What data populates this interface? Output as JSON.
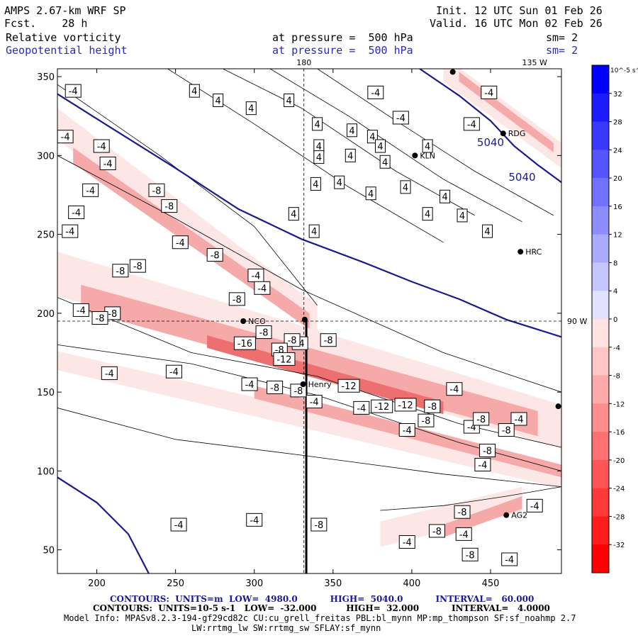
{
  "header": {
    "model": "AMPS 2.67-km WRF SP",
    "fcst": "Fcst.    28 h",
    "init": "Init. 12 UTC Sun 01 Feb 26",
    "valid": "Valid. 16 UTC Mon 02 Feb 26",
    "field1": {
      "name": "Relative vorticity",
      "pressure": "at pressure =  500 hPa",
      "sm": "sm= 2"
    },
    "field2": {
      "name": "Geopotential height",
      "pressure": "at pressure =  500 hPa",
      "sm": "sm= 2"
    }
  },
  "colors": {
    "axis": "#000000",
    "height_contour": "#1a1a8c",
    "vort_contour": "#000000",
    "neg_fill_light": "#fde6e6",
    "neg_fill_mid": "#f6a9a9",
    "neg_fill_strong": "#ee6f6f",
    "pos_label_blue": "#2a2ab8"
  },
  "chart_data": {
    "type": "heatmap",
    "x_range": [
      175,
      495
    ],
    "y_range": [
      35,
      355
    ],
    "x_ticks": [
      200,
      250,
      300,
      350,
      400,
      450
    ],
    "y_ticks": [
      50,
      100,
      150,
      200,
      250,
      300,
      350
    ],
    "meridian_labels": [
      {
        "text": "180",
        "x": 331.5,
        "y": 355,
        "edge": "top"
      },
      {
        "text": "135 W",
        "x": 478,
        "y": 355,
        "edge": "top"
      },
      {
        "text": "90 W",
        "x": 495,
        "y": 195,
        "edge": "right"
      }
    ],
    "grid_lines": {
      "x": 331.5,
      "y": 195
    },
    "cross_section_line": {
      "x": 333,
      "y_from": 35,
      "y_to": 195
    },
    "colorbar": {
      "unit_label": "10^-5 s^-1",
      "ticks": [
        32,
        28,
        24,
        20,
        16,
        12,
        8,
        4,
        0,
        -4,
        -8,
        -12,
        -16,
        -20,
        -24,
        -28,
        -32
      ],
      "colors": [
        "#0000ff",
        "#1c1cff",
        "#3838ff",
        "#5555ff",
        "#7171ff",
        "#8d8dff",
        "#aaaaff",
        "#c6c6ff",
        "#e2e2ff",
        "#ffe2e2",
        "#ffc6c6",
        "#ffaaaa",
        "#ff8d8d",
        "#ff7171",
        "#ff5555",
        "#ff3838",
        "#ff1c1c",
        "#ff0000"
      ]
    },
    "height_contours": [
      {
        "value": 5040,
        "label": "5040",
        "points": [
          [
            175,
            339
          ],
          [
            210,
            317
          ],
          [
            250,
            292
          ],
          [
            290,
            266
          ],
          [
            330,
            247
          ],
          [
            370,
            232
          ],
          [
            400,
            220
          ],
          [
            430,
            209
          ],
          [
            460,
            196
          ],
          [
            495,
            185
          ]
        ]
      },
      {
        "value": 5040,
        "label": "5040",
        "points": [
          [
            405,
            355
          ],
          [
            430,
            338
          ],
          [
            450,
            322
          ],
          [
            465,
            306
          ],
          [
            480,
            294
          ],
          [
            495,
            283
          ]
        ]
      },
      {
        "value": 5040,
        "label": "",
        "points": [
          [
            175,
            96
          ],
          [
            200,
            80
          ],
          [
            220,
            60
          ],
          [
            233,
            35
          ]
        ]
      }
    ],
    "stations": [
      {
        "name": "NCO",
        "x": 293,
        "y": 195
      },
      {
        "name": "Henry",
        "x": 331,
        "y": 155
      },
      {
        "name": "KLN",
        "x": 402,
        "y": 300
      },
      {
        "name": "RDG",
        "x": 458,
        "y": 314
      },
      {
        "name": "HRC",
        "x": 469,
        "y": 239
      },
      {
        "name": "AG2",
        "x": 460,
        "y": 72
      }
    ],
    "extra_markers": [
      {
        "x": 332,
        "y": 196
      },
      {
        "x": 426,
        "y": 353
      },
      {
        "x": 493,
        "y": 141
      }
    ],
    "contour_labels": [
      {
        "text": "-4",
        "x": 185,
        "y": 341
      },
      {
        "text": "-4",
        "x": 203,
        "y": 306
      },
      {
        "text": "-4",
        "x": 180,
        "y": 312
      },
      {
        "text": "-4",
        "x": 207,
        "y": 295
      },
      {
        "text": "-4",
        "x": 196,
        "y": 278
      },
      {
        "text": "-4",
        "x": 187,
        "y": 264
      },
      {
        "text": "-4",
        "x": 183,
        "y": 252
      },
      {
        "text": "-4",
        "x": 190,
        "y": 202
      },
      {
        "text": "-4",
        "x": 253,
        "y": 245
      },
      {
        "text": "-4",
        "x": 301,
        "y": 224
      },
      {
        "text": "-4",
        "x": 305,
        "y": 216
      },
      {
        "text": "-4",
        "x": 329,
        "y": 181
      },
      {
        "text": "-4",
        "x": 208,
        "y": 162
      },
      {
        "text": "-4",
        "x": 249,
        "y": 163
      },
      {
        "text": "-4",
        "x": 297,
        "y": 155
      },
      {
        "text": "-4",
        "x": 338,
        "y": 144
      },
      {
        "text": "-4",
        "x": 368,
        "y": 140
      },
      {
        "text": "-4",
        "x": 397,
        "y": 126
      },
      {
        "text": "-4",
        "x": 427,
        "y": 152
      },
      {
        "text": "-4",
        "x": 445,
        "y": 104
      },
      {
        "text": "-4",
        "x": 438,
        "y": 128
      },
      {
        "text": "-4",
        "x": 468,
        "y": 133
      },
      {
        "text": "-4",
        "x": 478,
        "y": 78
      },
      {
        "text": "-4",
        "x": 462,
        "y": 44
      },
      {
        "text": "-4",
        "x": 397,
        "y": 55
      },
      {
        "text": "-4",
        "x": 300,
        "y": 69
      },
      {
        "text": "-4",
        "x": 252,
        "y": 66
      },
      {
        "text": "-4",
        "x": 433,
        "y": 60
      },
      {
        "text": "-4",
        "x": 449,
        "y": 340
      },
      {
        "text": "-4",
        "x": 438,
        "y": 320
      },
      {
        "text": "-4",
        "x": 377,
        "y": 340
      },
      {
        "text": "-4",
        "x": 393,
        "y": 324
      },
      {
        "text": "-8",
        "x": 238,
        "y": 278
      },
      {
        "text": "-8",
        "x": 246,
        "y": 268
      },
      {
        "text": "-8",
        "x": 275,
        "y": 237
      },
      {
        "text": "-8",
        "x": 226,
        "y": 230
      },
      {
        "text": "-8",
        "x": 215,
        "y": 227
      },
      {
        "text": "-8",
        "x": 210,
        "y": 200
      },
      {
        "text": "-8",
        "x": 202,
        "y": 197
      },
      {
        "text": "-8",
        "x": 289,
        "y": 209
      },
      {
        "text": "-8",
        "x": 306,
        "y": 188
      },
      {
        "text": "-8",
        "x": 324,
        "y": 183
      },
      {
        "text": "-8",
        "x": 316,
        "y": 177
      },
      {
        "text": "-8",
        "x": 347,
        "y": 183
      },
      {
        "text": "-8",
        "x": 413,
        "y": 141
      },
      {
        "text": "-8",
        "x": 444,
        "y": 133
      },
      {
        "text": "-8",
        "x": 460,
        "y": 126
      },
      {
        "text": "-8",
        "x": 448,
        "y": 113
      },
      {
        "text": "-8",
        "x": 432,
        "y": 74
      },
      {
        "text": "-8",
        "x": 416,
        "y": 62
      },
      {
        "text": "-8",
        "x": 437,
        "y": 47
      },
      {
        "text": "-8",
        "x": 341,
        "y": 66
      },
      {
        "text": "-8",
        "x": 313,
        "y": 153
      },
      {
        "text": "-8",
        "x": 328,
        "y": 151
      },
      {
        "text": "-8",
        "x": 409,
        "y": 132
      },
      {
        "text": "-12",
        "x": 319,
        "y": 171
      },
      {
        "text": "-12",
        "x": 360,
        "y": 154
      },
      {
        "text": "-12",
        "x": 396,
        "y": 142
      },
      {
        "text": "-12",
        "x": 381,
        "y": 141
      },
      {
        "text": "-16",
        "x": 294,
        "y": 181
      },
      {
        "text": "4",
        "x": 262,
        "y": 341
      },
      {
        "text": "4",
        "x": 277,
        "y": 335
      },
      {
        "text": "4",
        "x": 298,
        "y": 330
      },
      {
        "text": "4",
        "x": 322,
        "y": 335
      },
      {
        "text": "4",
        "x": 340,
        "y": 320
      },
      {
        "text": "4",
        "x": 362,
        "y": 316
      },
      {
        "text": "4",
        "x": 375,
        "y": 312
      },
      {
        "text": "4",
        "x": 380,
        "y": 306
      },
      {
        "text": "4",
        "x": 341,
        "y": 306
      },
      {
        "text": "4",
        "x": 361,
        "y": 300
      },
      {
        "text": "4",
        "x": 383,
        "y": 296
      },
      {
        "text": "4",
        "x": 354,
        "y": 283
      },
      {
        "text": "4",
        "x": 374,
        "y": 276
      },
      {
        "text": "4",
        "x": 339,
        "y": 282
      },
      {
        "text": "4",
        "x": 341,
        "y": 299
      },
      {
        "text": "4",
        "x": 396,
        "y": 280
      },
      {
        "text": "4",
        "x": 410,
        "y": 263
      },
      {
        "text": "4",
        "x": 432,
        "y": 262
      },
      {
        "text": "4",
        "x": 410,
        "y": 306
      },
      {
        "text": "4",
        "x": 338,
        "y": 252
      },
      {
        "text": "4",
        "x": 448,
        "y": 252
      },
      {
        "text": "4",
        "x": 325,
        "y": 263
      },
      {
        "text": "4",
        "x": 421,
        "y": 274
      }
    ],
    "contour_label_note": "",
    "footer_contours1": "CONTOURS:  UNITS=m  LOW=  4980.0           HIGH=  5040.0           INTERVAL=   60.000",
    "footer_contours2": "CONTOURS:  UNITS=10-5 s-1   LOW=  -32.000          HIGH=  32.000           INTERVAL=   4.0000",
    "model_info": "Model Info: MPASv8.2.3-194-gf29cd82c CU:cu_grell_freitas PBL:bl_mynn MP:mp_thompson SF:sf_noahmp 2.7",
    "model_info2": "LW:rrtmg_lw SW:rrtmg_sw SFLAY:sf_mynn"
  }
}
